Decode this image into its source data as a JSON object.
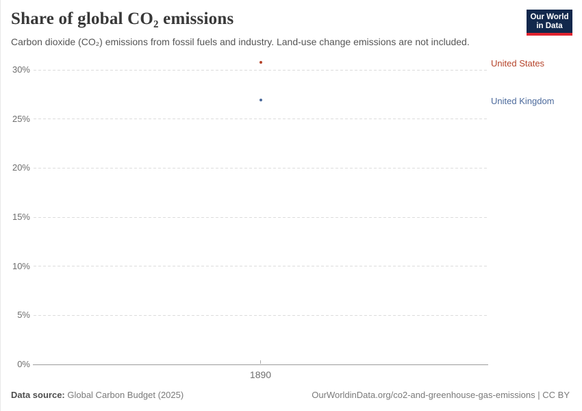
{
  "header": {
    "title": "Share of global CO₂ emissions",
    "subtitle": "Carbon dioxide (CO₂) emissions from fossil fuels and industry. Land-use change emissions are not included.",
    "logo": {
      "line1": "Our World",
      "line2": "in Data",
      "bg_color": "#12284C",
      "accent_color": "#E0232F"
    }
  },
  "chart_data": {
    "type": "scatter",
    "title": "Share of global CO₂ emissions",
    "x": [
      1890
    ],
    "xtick_labels": [
      "1890"
    ],
    "xlabel": "",
    "ylabel": "",
    "ylim": [
      0,
      30
    ],
    "ytick_interval": 5,
    "ytick_labels": [
      "0%",
      "5%",
      "10%",
      "15%",
      "20%",
      "25%",
      "30%"
    ],
    "grid": true,
    "legend_position": "right",
    "series": [
      {
        "name": "United States",
        "values": [
          30.8
        ],
        "color": "#B5432A"
      },
      {
        "name": "United Kingdom",
        "values": [
          26.9
        ],
        "color": "#4C6A9C"
      }
    ]
  },
  "footer": {
    "source_label": "Data source:",
    "source_value": " Global Carbon Budget (2025)",
    "url": "OurWorldinData.org/co2-and-greenhouse-gas-emissions",
    "license": " | CC BY"
  }
}
